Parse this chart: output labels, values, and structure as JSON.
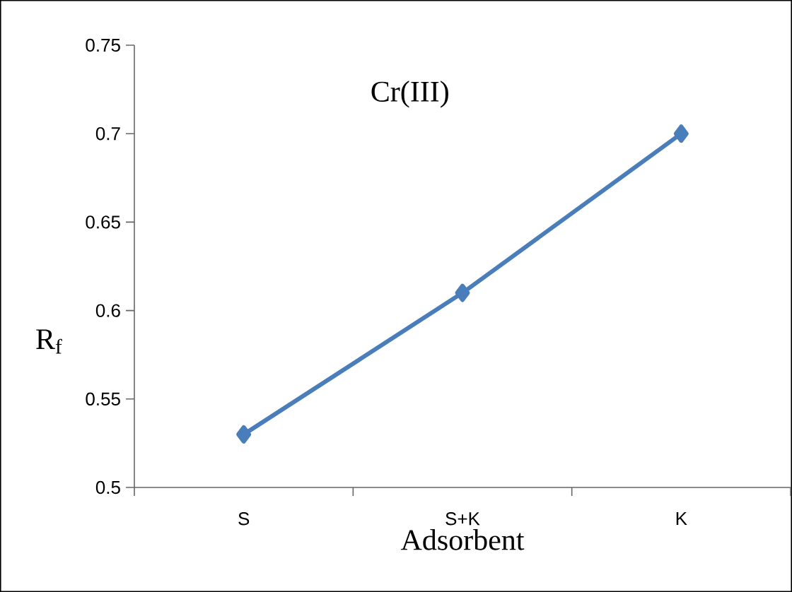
{
  "chart_data": {
    "type": "line",
    "title": "Cr(III)",
    "xlabel": "Adsorbent",
    "ylabel": "R$_{f}$",
    "categories": [
      "S",
      "S+K",
      "K"
    ],
    "series": [
      {
        "color": "#4a7ebb",
        "values": [
          0.53,
          0.61,
          0.7
        ]
      }
    ],
    "ylim": [
      0.5,
      0.75
    ],
    "yticks": [
      0.5,
      0.55,
      0.6,
      0.65,
      0.7,
      0.75
    ],
    "marker": "diamond",
    "grid": false
  }
}
